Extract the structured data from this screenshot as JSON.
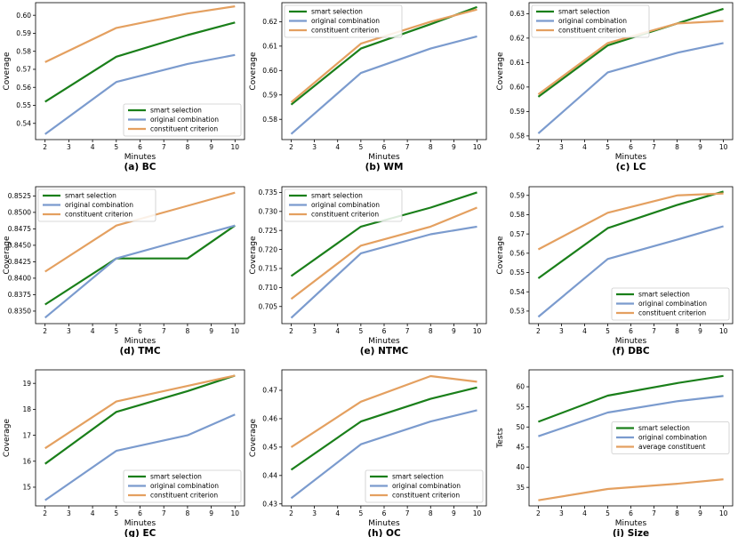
{
  "colors": {
    "smart": "#1a7f1a",
    "original": "#7b9bce",
    "constituent": "#e4a060",
    "frame": "#000000"
  },
  "chart_data": [
    {
      "type": "line",
      "caption": "(a) BC",
      "xlabel": "Minutes",
      "ylabel": "Coverage",
      "x": [
        2,
        5,
        8,
        10
      ],
      "xticks": [
        2,
        3,
        4,
        5,
        6,
        7,
        8,
        9,
        10
      ],
      "xlim": [
        1.6,
        10.4
      ],
      "ylim": [
        0.531,
        0.607
      ],
      "yticks": [
        {
          "v": 0.54,
          "label": "0.54"
        },
        {
          "v": 0.55,
          "label": "0.55"
        },
        {
          "v": 0.56,
          "label": "0.56"
        },
        {
          "v": 0.57,
          "label": "0.57"
        },
        {
          "v": 0.58,
          "label": "0.58"
        },
        {
          "v": 0.59,
          "label": "0.59"
        },
        {
          "v": 0.6,
          "label": "0.60"
        }
      ],
      "legend_position": "lower-right",
      "series": [
        {
          "name": "smart selection",
          "color_key": "smart",
          "values": [
            0.552,
            0.577,
            0.589,
            0.596
          ]
        },
        {
          "name": "original combination",
          "color_key": "original",
          "values": [
            0.534,
            0.563,
            0.573,
            0.578
          ]
        },
        {
          "name": "constituent criterion",
          "color_key": "constituent",
          "values": [
            0.574,
            0.593,
            0.601,
            0.605
          ]
        }
      ]
    },
    {
      "type": "line",
      "caption": "(b) WM",
      "xlabel": "Minutes",
      "ylabel": "Coverage",
      "x": [
        2,
        5,
        8,
        10
      ],
      "xticks": [
        2,
        3,
        4,
        5,
        6,
        7,
        8,
        9,
        10
      ],
      "xlim": [
        1.6,
        10.4
      ],
      "ylim": [
        0.5717,
        0.6278
      ],
      "yticks": [
        {
          "v": 0.58,
          "label": "0.58"
        },
        {
          "v": 0.59,
          "label": "0.59"
        },
        {
          "v": 0.6,
          "label": "0.60"
        },
        {
          "v": 0.61,
          "label": "0.61"
        },
        {
          "v": 0.62,
          "label": "0.62"
        }
      ],
      "legend_position": "upper-left",
      "series": [
        {
          "name": "smart selection",
          "color_key": "smart",
          "values": [
            0.586,
            0.609,
            0.619,
            0.626
          ]
        },
        {
          "name": "original combination",
          "color_key": "original",
          "values": [
            0.574,
            0.599,
            0.609,
            0.614
          ]
        },
        {
          "name": "constituent criterion",
          "color_key": "constituent",
          "values": [
            0.587,
            0.611,
            0.62,
            0.625
          ]
        }
      ]
    },
    {
      "type": "line",
      "caption": "(c) LC",
      "xlabel": "Minutes",
      "ylabel": "Coverage",
      "x": [
        2,
        5,
        8,
        10
      ],
      "xticks": [
        2,
        3,
        4,
        5,
        6,
        7,
        8,
        9,
        10
      ],
      "xlim": [
        1.6,
        10.4
      ],
      "ylim": [
        0.5785,
        0.6345
      ],
      "yticks": [
        {
          "v": 0.58,
          "label": "0.58"
        },
        {
          "v": 0.59,
          "label": "0.59"
        },
        {
          "v": 0.6,
          "label": "0.60"
        },
        {
          "v": 0.61,
          "label": "0.61"
        },
        {
          "v": 0.62,
          "label": "0.62"
        },
        {
          "v": 0.63,
          "label": "0.63"
        }
      ],
      "legend_position": "upper-left",
      "series": [
        {
          "name": "smart selection",
          "color_key": "smart",
          "values": [
            0.596,
            0.617,
            0.626,
            0.632
          ]
        },
        {
          "name": "original combination",
          "color_key": "original",
          "values": [
            0.581,
            0.606,
            0.614,
            0.618
          ]
        },
        {
          "name": "constituent criterion",
          "color_key": "constituent",
          "values": [
            0.597,
            0.618,
            0.626,
            0.627
          ]
        }
      ]
    },
    {
      "type": "line",
      "caption": "(d) TMC",
      "xlabel": "Minutes",
      "ylabel": "Coverage",
      "x": [
        2,
        5,
        8,
        10
      ],
      "xticks": [
        2,
        3,
        4,
        5,
        6,
        7,
        8,
        9,
        10
      ],
      "xlim": [
        1.6,
        10.4
      ],
      "ylim": [
        0.8331,
        0.8539
      ],
      "yticks": [
        {
          "v": 0.835,
          "label": "0.8350"
        },
        {
          "v": 0.8375,
          "label": "0.8375"
        },
        {
          "v": 0.84,
          "label": "0.8400"
        },
        {
          "v": 0.8425,
          "label": "0.8425"
        },
        {
          "v": 0.845,
          "label": "0.8450"
        },
        {
          "v": 0.8475,
          "label": "0.8475"
        },
        {
          "v": 0.85,
          "label": "0.8500"
        },
        {
          "v": 0.8525,
          "label": "0.8525"
        }
      ],
      "legend_position": "upper-left",
      "series": [
        {
          "name": "smart selection",
          "color_key": "smart",
          "values": [
            0.836,
            0.843,
            0.843,
            0.848
          ]
        },
        {
          "name": "original combination",
          "color_key": "original",
          "values": [
            0.834,
            0.843,
            0.846,
            0.848
          ]
        },
        {
          "name": "constituent criterion",
          "color_key": "constituent",
          "values": [
            0.841,
            0.848,
            0.851,
            0.853
          ]
        }
      ]
    },
    {
      "type": "line",
      "caption": "(e) NTMC",
      "xlabel": "Minutes",
      "ylabel": "Coverage",
      "x": [
        2,
        5,
        8,
        10
      ],
      "xticks": [
        2,
        3,
        4,
        5,
        6,
        7,
        8,
        9,
        10
      ],
      "xlim": [
        1.6,
        10.4
      ],
      "ylim": [
        0.7005,
        0.7365
      ],
      "yticks": [
        {
          "v": 0.705,
          "label": "0.705"
        },
        {
          "v": 0.71,
          "label": "0.710"
        },
        {
          "v": 0.715,
          "label": "0.715"
        },
        {
          "v": 0.72,
          "label": "0.720"
        },
        {
          "v": 0.725,
          "label": "0.725"
        },
        {
          "v": 0.73,
          "label": "0.730"
        },
        {
          "v": 0.735,
          "label": "0.735"
        }
      ],
      "legend_position": "upper-left",
      "series": [
        {
          "name": "smart selection",
          "color_key": "smart",
          "values": [
            0.713,
            0.726,
            0.731,
            0.735
          ]
        },
        {
          "name": "original combination",
          "color_key": "original",
          "values": [
            0.702,
            0.719,
            0.724,
            0.726
          ]
        },
        {
          "name": "constituent criterion",
          "color_key": "constituent",
          "values": [
            0.707,
            0.721,
            0.726,
            0.731
          ]
        }
      ]
    },
    {
      "type": "line",
      "caption": "(f) DBC",
      "xlabel": "Minutes",
      "ylabel": "Coverage",
      "x": [
        2,
        5,
        8,
        10
      ],
      "xticks": [
        2,
        3,
        4,
        5,
        6,
        7,
        8,
        9,
        10
      ],
      "xlim": [
        1.6,
        10.4
      ],
      "ylim": [
        0.5235,
        0.5945
      ],
      "yticks": [
        {
          "v": 0.53,
          "label": "0.53"
        },
        {
          "v": 0.54,
          "label": "0.54"
        },
        {
          "v": 0.55,
          "label": "0.55"
        },
        {
          "v": 0.56,
          "label": "0.56"
        },
        {
          "v": 0.57,
          "label": "0.57"
        },
        {
          "v": 0.58,
          "label": "0.58"
        },
        {
          "v": 0.59,
          "label": "0.59"
        }
      ],
      "legend_position": "lower-right",
      "series": [
        {
          "name": "smart selection",
          "color_key": "smart",
          "values": [
            0.547,
            0.573,
            0.585,
            0.592
          ]
        },
        {
          "name": "original combination",
          "color_key": "original",
          "values": [
            0.527,
            0.557,
            0.567,
            0.574
          ]
        },
        {
          "name": "constituent criterion",
          "color_key": "constituent",
          "values": [
            0.562,
            0.581,
            0.59,
            0.591
          ]
        }
      ]
    },
    {
      "type": "line",
      "caption": "(g) EC",
      "xlabel": "Minutes",
      "ylabel": "Coverage",
      "x": [
        2,
        5,
        8,
        10
      ],
      "xticks": [
        2,
        3,
        4,
        5,
        6,
        7,
        8,
        9,
        10
      ],
      "xlim": [
        1.6,
        10.4
      ],
      "ylim": [
        14.28,
        19.52
      ],
      "yticks": [
        {
          "v": 15,
          "label": "15"
        },
        {
          "v": 16,
          "label": "16"
        },
        {
          "v": 17,
          "label": "17"
        },
        {
          "v": 18,
          "label": "18"
        },
        {
          "v": 19,
          "label": "19"
        }
      ],
      "legend_position": "lower-right",
      "series": [
        {
          "name": "smart selection",
          "color_key": "smart",
          "values": [
            15.9,
            17.9,
            18.7,
            19.3
          ]
        },
        {
          "name": "original combination",
          "color_key": "original",
          "values": [
            14.5,
            16.4,
            17.0,
            17.8
          ]
        },
        {
          "name": "constituent criterion",
          "color_key": "constituent",
          "values": [
            16.5,
            18.3,
            18.9,
            19.3
          ]
        }
      ]
    },
    {
      "type": "line",
      "caption": "(h) OC",
      "xlabel": "Minutes",
      "ylabel": "Coverage",
      "x": [
        2,
        5,
        8,
        10
      ],
      "xticks": [
        2,
        3,
        4,
        5,
        6,
        7,
        8,
        9,
        10
      ],
      "xlim": [
        1.6,
        10.4
      ],
      "ylim": [
        0.4293,
        0.4772
      ],
      "yticks": [
        {
          "v": 0.43,
          "label": "0.43"
        },
        {
          "v": 0.44,
          "label": "0.44"
        },
        {
          "v": 0.45,
          "label": "0.45"
        },
        {
          "v": 0.46,
          "label": "0.46"
        },
        {
          "v": 0.47,
          "label": "0.47"
        }
      ],
      "legend_position": "lower-right",
      "series": [
        {
          "name": "smart selection",
          "color_key": "smart",
          "values": [
            0.442,
            0.459,
            0.467,
            0.471
          ]
        },
        {
          "name": "original combination",
          "color_key": "original",
          "values": [
            0.432,
            0.451,
            0.459,
            0.463
          ]
        },
        {
          "name": "constituent criterion",
          "color_key": "constituent",
          "values": [
            0.45,
            0.466,
            0.475,
            0.473
          ]
        }
      ]
    },
    {
      "type": "line",
      "caption": "(i) Size",
      "xlabel": "Minutes",
      "ylabel": "Tests",
      "x": [
        2,
        5,
        8,
        10
      ],
      "xticks": [
        2,
        3,
        4,
        5,
        6,
        7,
        8,
        9,
        10
      ],
      "xlim": [
        1.6,
        10.4
      ],
      "ylim": [
        30.4,
        64.2
      ],
      "yticks": [
        {
          "v": 35,
          "label": "35"
        },
        {
          "v": 40,
          "label": "40"
        },
        {
          "v": 45,
          "label": "45"
        },
        {
          "v": 50,
          "label": "50"
        },
        {
          "v": 55,
          "label": "55"
        },
        {
          "v": 60,
          "label": "60"
        }
      ],
      "legend_position": "center-right",
      "series": [
        {
          "name": "smart selection",
          "color_key": "smart",
          "values": [
            51.3,
            57.8,
            60.9,
            62.7
          ]
        },
        {
          "name": "original combination",
          "color_key": "original",
          "values": [
            47.7,
            53.6,
            56.4,
            57.7
          ]
        },
        {
          "name": "average constituent",
          "color_key": "constituent",
          "values": [
            31.8,
            34.6,
            35.9,
            37.0
          ]
        }
      ]
    }
  ]
}
